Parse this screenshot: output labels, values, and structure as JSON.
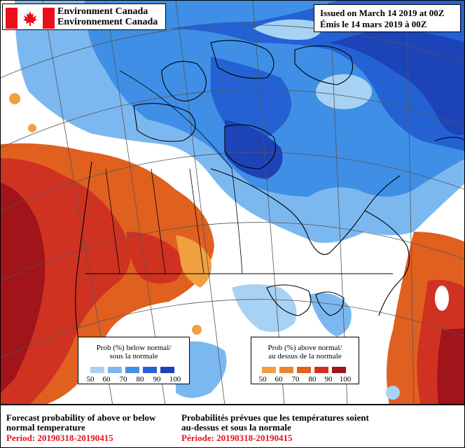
{
  "header": {
    "agency_en": "Environment Canada",
    "agency_fr": "Environnement Canada",
    "issued_en": "Issued on March 14 2019 at 00Z",
    "issued_fr": "Émis le 14 mars 2019 à 00Z"
  },
  "legend_below": {
    "title_en": "Prob (%) below normal/",
    "title_fr": "sous la normale",
    "ticks": [
      "50",
      "60",
      "70",
      "80",
      "90",
      "100"
    ],
    "colors": [
      "#a7d2f4",
      "#7cb8f0",
      "#3f8fe6",
      "#2462d3",
      "#1c43b8"
    ]
  },
  "legend_above": {
    "title_en": "Prob (%) above normal/",
    "title_fr": "au dessus de la normale",
    "ticks": [
      "50",
      "60",
      "70",
      "80",
      "90",
      "100"
    ],
    "colors": [
      "#f0a040",
      "#e8842a",
      "#e06020",
      "#d03222",
      "#a0141a"
    ]
  },
  "footer": {
    "en_line1": "Forecast probability of above or below",
    "en_line2": "normal temperature",
    "en_period": "Period: 20190318-20190415",
    "fr_line1": "Probabilités prévues que les températures soient",
    "fr_line2": "au-dessus et sous la normale",
    "fr_period": "Période: 20190318-20190415"
  },
  "icons": {
    "flag": "canada-flag-icon"
  }
}
